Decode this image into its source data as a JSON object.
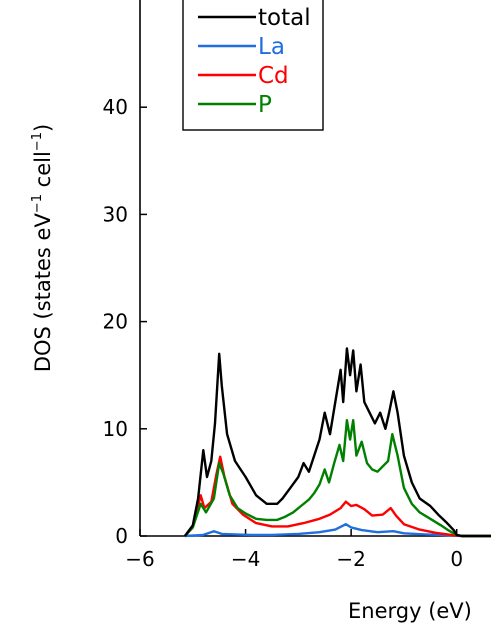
{
  "chart_data": {
    "type": "line",
    "xlabel": "Energy (eV)",
    "ylabel": "DOS (states eV",
    "ylabel_sup1": "−1",
    "ylabel_mid": " cell",
    "ylabel_sup2": "−1",
    "ylabel_end": ")",
    "xlim": [
      -6,
      0.65
    ],
    "ylim": [
      0,
      50
    ],
    "x_ticks": [
      -6,
      -4,
      -2,
      0
    ],
    "x_tick_labels": [
      "−6",
      "−4",
      "−2",
      "0"
    ],
    "y_ticks": [
      0,
      10,
      20,
      30,
      40
    ],
    "y_tick_labels": [
      "0",
      "10",
      "20",
      "30",
      "40"
    ],
    "grid": false,
    "legend_position": "top-left",
    "series": [
      {
        "name": "total",
        "color": "#000000",
        "points": [
          [
            -5.15,
            0
          ],
          [
            -5.0,
            1.0
          ],
          [
            -4.9,
            3.5
          ],
          [
            -4.8,
            8.0
          ],
          [
            -4.73,
            5.5
          ],
          [
            -4.65,
            7.0
          ],
          [
            -4.58,
            10.5
          ],
          [
            -4.5,
            17.0
          ],
          [
            -4.45,
            14.0
          ],
          [
            -4.35,
            9.5
          ],
          [
            -4.2,
            7.0
          ],
          [
            -4.0,
            5.5
          ],
          [
            -3.8,
            3.8
          ],
          [
            -3.6,
            3.0
          ],
          [
            -3.4,
            3.0
          ],
          [
            -3.3,
            3.5
          ],
          [
            -3.15,
            4.5
          ],
          [
            -3.0,
            5.5
          ],
          [
            -2.9,
            6.8
          ],
          [
            -2.8,
            6.0
          ],
          [
            -2.7,
            7.5
          ],
          [
            -2.6,
            9.0
          ],
          [
            -2.5,
            11.5
          ],
          [
            -2.4,
            9.5
          ],
          [
            -2.3,
            12.5
          ],
          [
            -2.2,
            15.5
          ],
          [
            -2.15,
            12.5
          ],
          [
            -2.08,
            17.5
          ],
          [
            -2.02,
            15.0
          ],
          [
            -1.96,
            17.3
          ],
          [
            -1.9,
            13.5
          ],
          [
            -1.82,
            16.0
          ],
          [
            -1.75,
            12.5
          ],
          [
            -1.65,
            11.5
          ],
          [
            -1.55,
            10.5
          ],
          [
            -1.45,
            11.5
          ],
          [
            -1.35,
            10.0
          ],
          [
            -1.28,
            11.5
          ],
          [
            -1.2,
            13.5
          ],
          [
            -1.12,
            11.5
          ],
          [
            -1.0,
            7.5
          ],
          [
            -0.85,
            5.0
          ],
          [
            -0.7,
            3.5
          ],
          [
            -0.5,
            2.8
          ],
          [
            -0.35,
            2.0
          ],
          [
            -0.2,
            1.3
          ],
          [
            -0.05,
            0.5
          ],
          [
            0.0,
            0.1
          ],
          [
            0.1,
            0
          ],
          [
            0.65,
            0
          ]
        ]
      },
      {
        "name": "La",
        "color": "#1f6fe0",
        "points": [
          [
            -5.15,
            0
          ],
          [
            -4.8,
            0.1
          ],
          [
            -4.6,
            0.45
          ],
          [
            -4.45,
            0.2
          ],
          [
            -4.2,
            0.15
          ],
          [
            -3.9,
            0.1
          ],
          [
            -3.5,
            0.1
          ],
          [
            -3.0,
            0.2
          ],
          [
            -2.6,
            0.35
          ],
          [
            -2.3,
            0.6
          ],
          [
            -2.1,
            1.1
          ],
          [
            -2.0,
            0.8
          ],
          [
            -1.8,
            0.55
          ],
          [
            -1.5,
            0.35
          ],
          [
            -1.2,
            0.45
          ],
          [
            -1.0,
            0.25
          ],
          [
            -0.6,
            0.15
          ],
          [
            -0.3,
            0.1
          ],
          [
            -0.05,
            0.05
          ],
          [
            0.1,
            0
          ],
          [
            0.65,
            0
          ]
        ]
      },
      {
        "name": "Cd",
        "color": "#ff0000",
        "points": [
          [
            -5.15,
            0
          ],
          [
            -5.0,
            0.8
          ],
          [
            -4.85,
            3.8
          ],
          [
            -4.78,
            2.6
          ],
          [
            -4.65,
            3.2
          ],
          [
            -4.55,
            5.8
          ],
          [
            -4.48,
            7.4
          ],
          [
            -4.4,
            5.5
          ],
          [
            -4.25,
            3.0
          ],
          [
            -4.05,
            2.0
          ],
          [
            -3.8,
            1.2
          ],
          [
            -3.5,
            0.9
          ],
          [
            -3.2,
            0.9
          ],
          [
            -2.9,
            1.2
          ],
          [
            -2.6,
            1.6
          ],
          [
            -2.4,
            2.0
          ],
          [
            -2.2,
            2.6
          ],
          [
            -2.1,
            3.2
          ],
          [
            -2.0,
            2.8
          ],
          [
            -1.9,
            2.9
          ],
          [
            -1.75,
            2.5
          ],
          [
            -1.6,
            1.9
          ],
          [
            -1.4,
            2.0
          ],
          [
            -1.25,
            2.6
          ],
          [
            -1.15,
            1.9
          ],
          [
            -1.0,
            1.1
          ],
          [
            -0.7,
            0.6
          ],
          [
            -0.4,
            0.3
          ],
          [
            -0.1,
            0.1
          ],
          [
            0.1,
            0
          ],
          [
            0.65,
            0
          ]
        ]
      },
      {
        "name": "P",
        "color": "#008000",
        "points": [
          [
            -5.15,
            0
          ],
          [
            -5.0,
            0.8
          ],
          [
            -4.85,
            3.0
          ],
          [
            -4.75,
            2.2
          ],
          [
            -4.6,
            3.5
          ],
          [
            -4.5,
            6.8
          ],
          [
            -4.42,
            5.8
          ],
          [
            -4.3,
            3.8
          ],
          [
            -4.15,
            2.6
          ],
          [
            -4.0,
            2.1
          ],
          [
            -3.8,
            1.6
          ],
          [
            -3.6,
            1.5
          ],
          [
            -3.4,
            1.5
          ],
          [
            -3.25,
            1.8
          ],
          [
            -3.1,
            2.2
          ],
          [
            -2.95,
            2.8
          ],
          [
            -2.8,
            3.4
          ],
          [
            -2.7,
            4.0
          ],
          [
            -2.6,
            4.8
          ],
          [
            -2.5,
            6.2
          ],
          [
            -2.42,
            5.0
          ],
          [
            -2.32,
            6.8
          ],
          [
            -2.22,
            8.5
          ],
          [
            -2.15,
            7.0
          ],
          [
            -2.08,
            10.8
          ],
          [
            -2.02,
            9.0
          ],
          [
            -1.96,
            10.8
          ],
          [
            -1.9,
            7.5
          ],
          [
            -1.8,
            8.8
          ],
          [
            -1.7,
            6.8
          ],
          [
            -1.6,
            6.2
          ],
          [
            -1.5,
            6.0
          ],
          [
            -1.4,
            6.5
          ],
          [
            -1.3,
            7.0
          ],
          [
            -1.22,
            9.5
          ],
          [
            -1.12,
            7.5
          ],
          [
            -1.0,
            4.5
          ],
          [
            -0.85,
            3.0
          ],
          [
            -0.7,
            2.2
          ],
          [
            -0.5,
            1.6
          ],
          [
            -0.3,
            1.0
          ],
          [
            -0.15,
            0.5
          ],
          [
            0.0,
            0.1
          ],
          [
            0.1,
            0
          ],
          [
            0.65,
            0
          ]
        ]
      }
    ]
  }
}
